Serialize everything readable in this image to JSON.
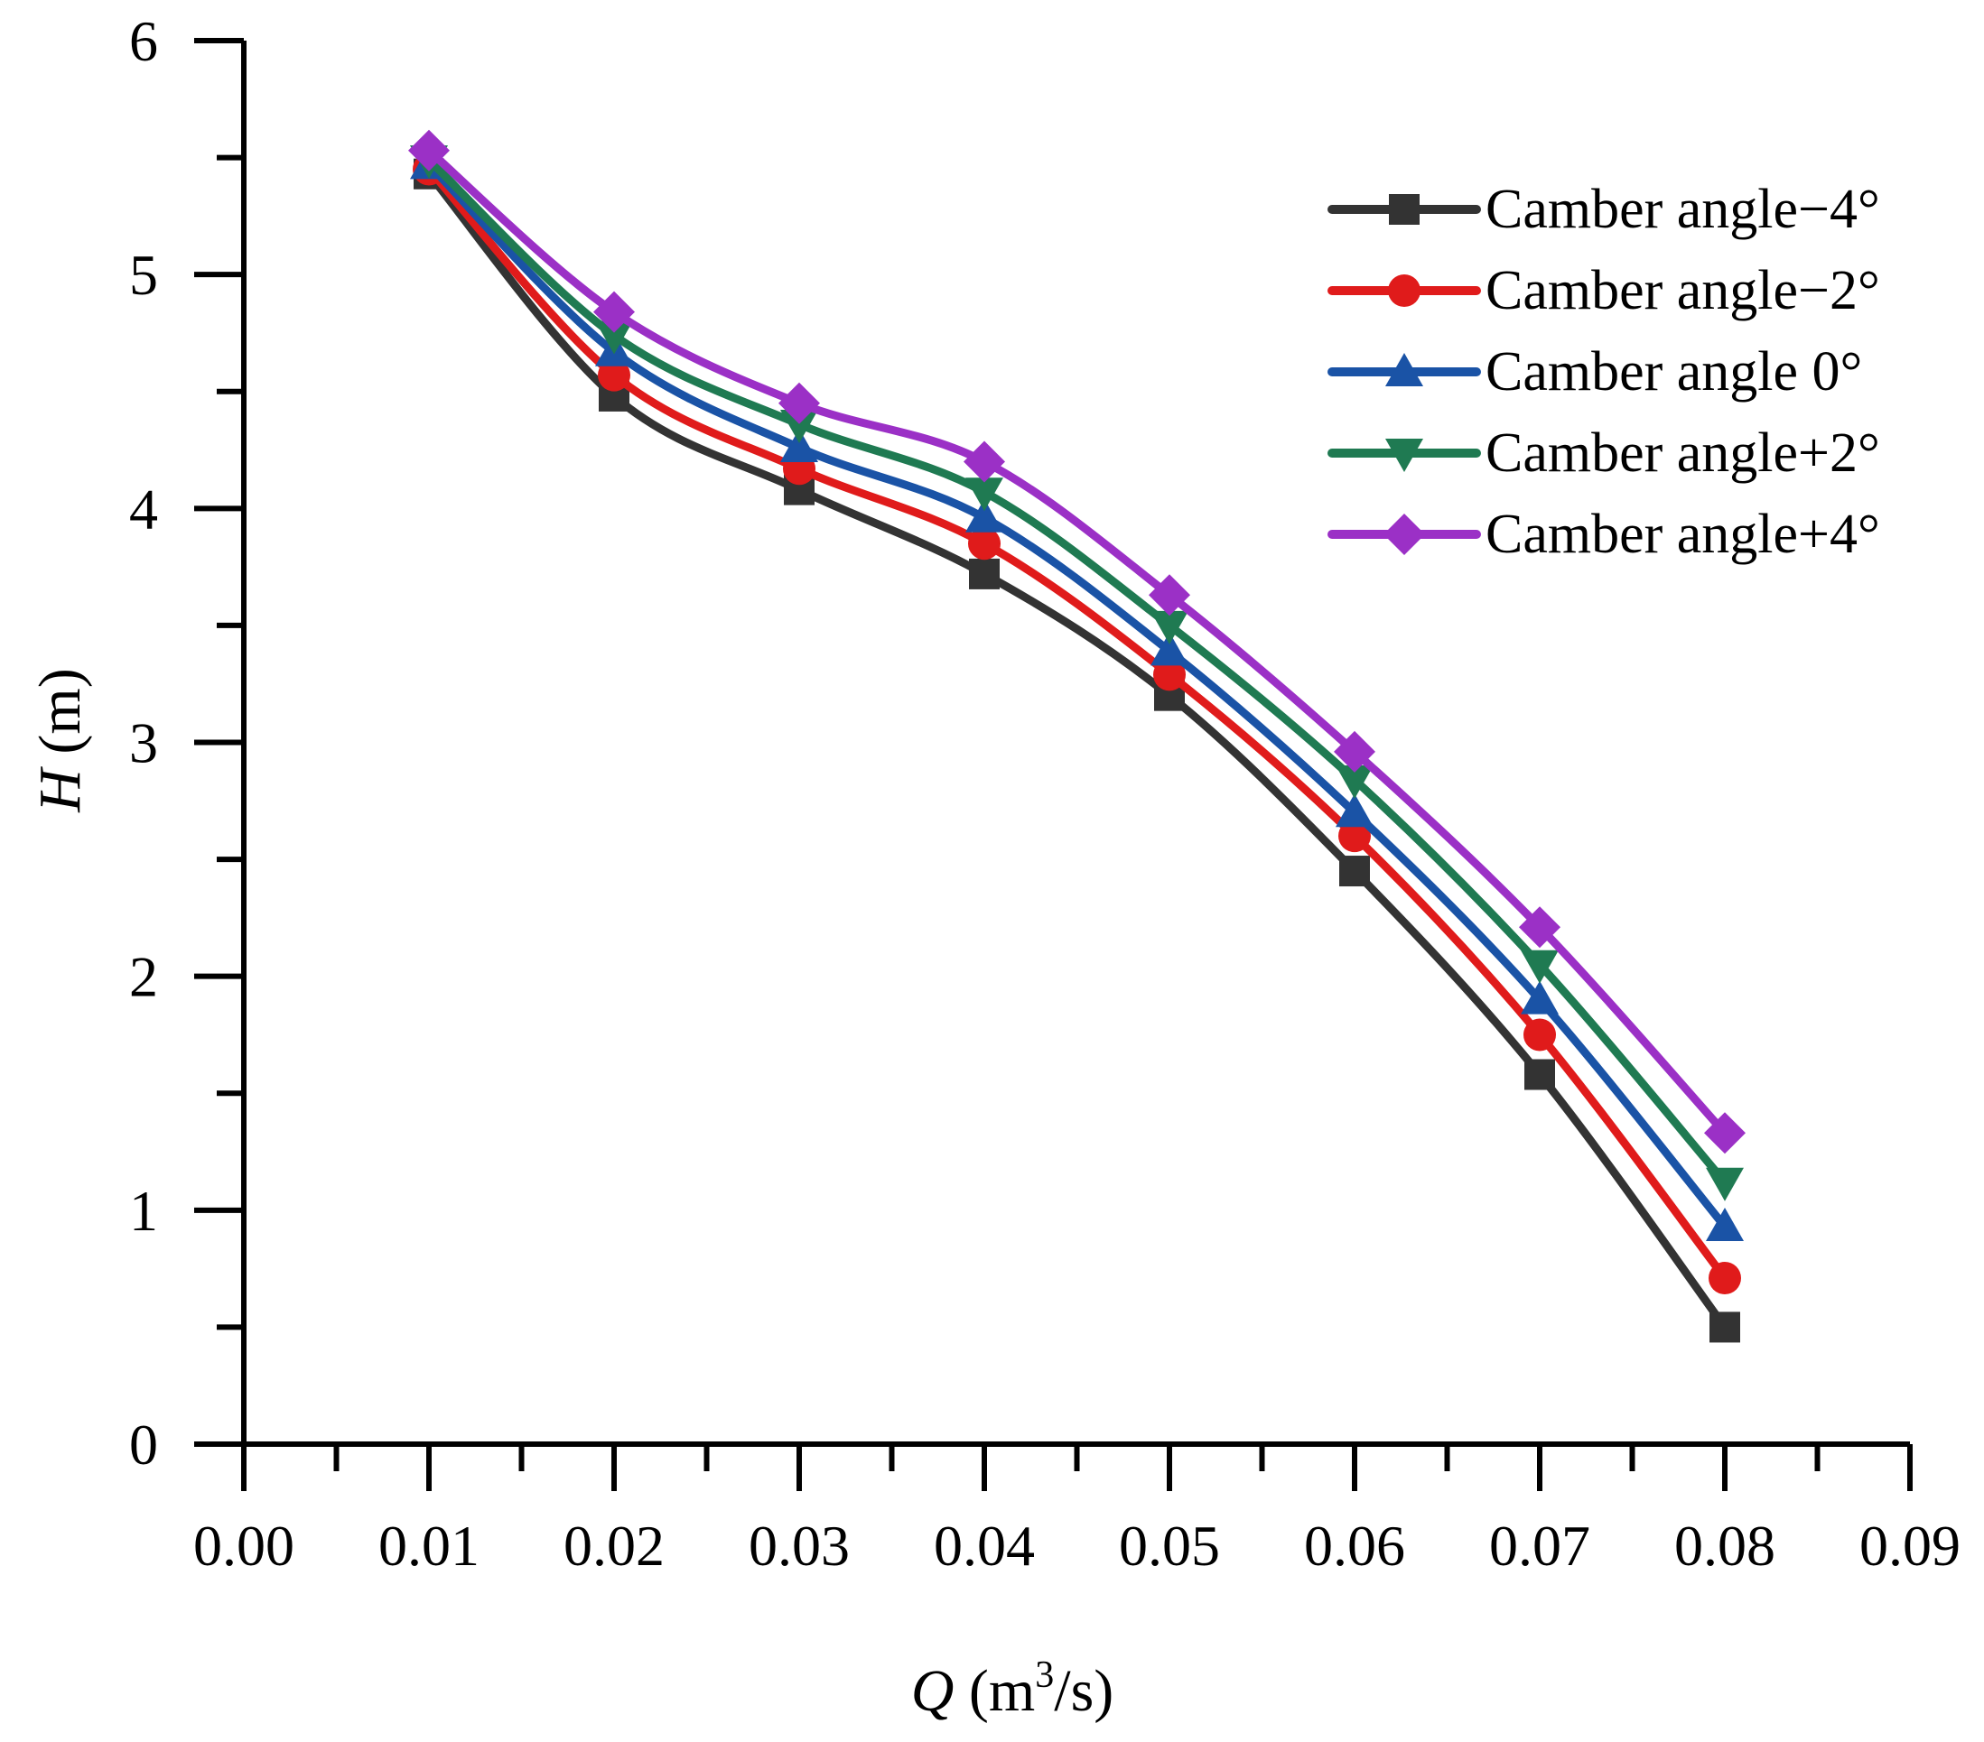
{
  "chart_data": {
    "type": "line",
    "title": "",
    "xlabel": {
      "var": "Q",
      "unit_pre": " (m",
      "unit_sup": "3",
      "unit_post": "/s)"
    },
    "ylabel": {
      "var": "H",
      "unit": " (m)"
    },
    "xlim": [
      0,
      0.09
    ],
    "ylim": [
      0,
      6
    ],
    "x_ticks": [
      "0.00",
      "0.01",
      "0.02",
      "0.03",
      "0.04",
      "0.05",
      "0.06",
      "0.07",
      "0.08",
      "0.09"
    ],
    "y_ticks": [
      "0",
      "1",
      "2",
      "3",
      "4",
      "5",
      "6"
    ],
    "grid": false,
    "legend_position": "top-right",
    "x": [
      0.01,
      0.02,
      0.03,
      0.04,
      0.05,
      0.06,
      0.07,
      0.08
    ],
    "series": [
      {
        "name": "Camber angle−4°",
        "color": "#333333",
        "marker": "square",
        "values": [
          5.43,
          4.48,
          4.08,
          3.72,
          3.2,
          2.45,
          1.58,
          0.5
        ]
      },
      {
        "name": "Camber angle−2°",
        "color": "#e01b1b",
        "marker": "circle",
        "values": [
          5.45,
          4.57,
          4.17,
          3.85,
          3.29,
          2.6,
          1.75,
          0.71
        ]
      },
      {
        "name": "Camber angle 0°",
        "color": "#1a53a6",
        "marker": "triangle-up",
        "values": [
          5.47,
          4.67,
          4.26,
          3.96,
          3.39,
          2.7,
          1.9,
          0.93
        ]
      },
      {
        "name": "Camber angle+2°",
        "color": "#1f7a52",
        "marker": "triangle-down",
        "values": [
          5.49,
          4.74,
          4.36,
          4.07,
          3.5,
          2.84,
          2.05,
          1.12
        ]
      },
      {
        "name": "Camber angle+4°",
        "color": "#9b30c6",
        "marker": "diamond",
        "values": [
          5.53,
          4.84,
          4.45,
          4.2,
          3.63,
          2.96,
          2.21,
          1.33
        ]
      }
    ]
  }
}
